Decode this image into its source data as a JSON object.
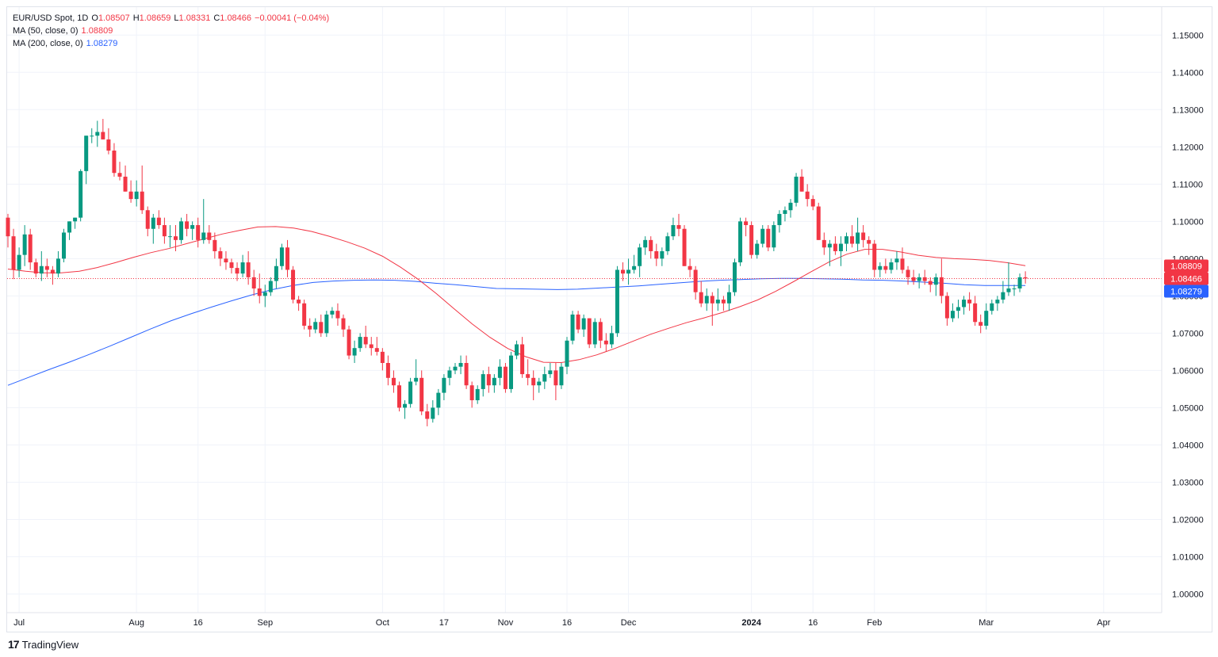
{
  "legend": {
    "symbol": "EUR/USD Spot, 1D",
    "open_label": "O",
    "open": "1.08507",
    "high_label": "H",
    "high": "1.08659",
    "low_label": "L",
    "low": "1.08331",
    "close_label": "C",
    "close": "1.08466",
    "change": "−0.00041 (−0.04%)",
    "ma50_label": "MA (50, close, 0)",
    "ma50_value": "1.08809",
    "ma200_label": "MA (200, close, 0)",
    "ma200_value": "1.08279"
  },
  "brand": {
    "name": "TradingView",
    "logo": "17"
  },
  "colors": {
    "up": "#089981",
    "down": "#f23645",
    "ma50": "#f23645",
    "ma200": "#2962ff",
    "grid": "#f0f3fa",
    "text": "#131722"
  },
  "chart_data": {
    "type": "candlestick",
    "title": "EUR/USD Spot, 1D",
    "ylim": [
      0.995,
      1.1575
    ],
    "y_ticks": [
      "1.15000",
      "1.14000",
      "1.13000",
      "1.12000",
      "1.11000",
      "1.10000",
      "1.09000",
      "1.08000",
      "1.07000",
      "1.06000",
      "1.05000",
      "1.04000",
      "1.03000",
      "1.02000",
      "1.01000",
      "1.00000"
    ],
    "x_ticks": [
      {
        "label": "Jul",
        "day": 2
      },
      {
        "label": "Aug",
        "day": 23
      },
      {
        "label": "16",
        "day": 34
      },
      {
        "label": "Sep",
        "day": 46
      },
      {
        "label": "Oct",
        "day": 67
      },
      {
        "label": "17",
        "day": 78
      },
      {
        "label": "Nov",
        "day": 89
      },
      {
        "label": "16",
        "day": 100
      },
      {
        "label": "Dec",
        "day": 111
      },
      {
        "label": "2024",
        "day": 133
      },
      {
        "label": "16",
        "day": 144
      },
      {
        "label": "Feb",
        "day": 155
      },
      {
        "label": "Mar",
        "day": 175
      },
      {
        "label": "Apr",
        "day": 196
      }
    ],
    "price_labels": [
      {
        "name": "MA 50",
        "value": "1.08809",
        "bg": "#f23645"
      },
      {
        "name": "Last",
        "value": "1.08466",
        "bg": "#f23645"
      },
      {
        "name": "MA 200",
        "value": "1.08279",
        "bg": "#2962ff"
      }
    ],
    "last_price": 1.08466,
    "candles": [
      [
        1.101,
        1.102,
        1.093,
        1.096
      ],
      [
        1.096,
        1.098,
        1.0845,
        1.087
      ],
      [
        1.087,
        1.093,
        1.085,
        1.091
      ],
      [
        1.091,
        1.099,
        1.088,
        1.0965
      ],
      [
        1.0965,
        1.098,
        1.087,
        1.089
      ],
      [
        1.089,
        1.09,
        1.085,
        1.086
      ],
      [
        1.086,
        1.092,
        1.084,
        1.088
      ],
      [
        1.088,
        1.09,
        1.085,
        1.087
      ],
      [
        1.087,
        1.088,
        1.083,
        1.086
      ],
      [
        1.086,
        1.092,
        1.085,
        1.09
      ],
      [
        1.09,
        1.098,
        1.089,
        1.097
      ],
      [
        1.097,
        1.1,
        1.095,
        1.1
      ],
      [
        1.1,
        1.101,
        1.098,
        1.101
      ],
      [
        1.101,
        1.114,
        1.1,
        1.1135
      ],
      [
        1.1135,
        1.123,
        1.11,
        1.123
      ],
      [
        1.123,
        1.125,
        1.121,
        1.123
      ],
      [
        1.123,
        1.127,
        1.12,
        1.124
      ],
      [
        1.124,
        1.1275,
        1.122,
        1.122
      ],
      [
        1.122,
        1.125,
        1.118,
        1.119
      ],
      [
        1.119,
        1.121,
        1.112,
        1.113
      ],
      [
        1.113,
        1.116,
        1.111,
        1.112
      ],
      [
        1.112,
        1.115,
        1.108,
        1.108
      ],
      [
        1.108,
        1.111,
        1.105,
        1.106
      ],
      [
        1.106,
        1.111,
        1.104,
        1.108
      ],
      [
        1.108,
        1.115,
        1.102,
        1.103
      ],
      [
        1.103,
        1.104,
        1.096,
        1.098
      ],
      [
        1.098,
        1.102,
        1.094,
        1.101
      ],
      [
        1.101,
        1.103,
        1.098,
        1.099
      ],
      [
        1.099,
        1.101,
        1.094,
        1.096
      ],
      [
        1.096,
        1.099,
        1.093,
        1.096
      ],
      [
        1.096,
        1.099,
        1.092,
        1.095
      ],
      [
        1.095,
        1.101,
        1.094,
        1.1
      ],
      [
        1.1,
        1.102,
        1.096,
        1.098
      ],
      [
        1.098,
        1.1,
        1.095,
        1.099
      ],
      [
        1.099,
        1.101,
        1.093,
        1.095
      ],
      [
        1.095,
        1.106,
        1.094,
        1.097
      ],
      [
        1.097,
        1.099,
        1.094,
        1.095
      ],
      [
        1.095,
        1.097,
        1.09,
        1.092
      ],
      [
        1.092,
        1.093,
        1.088,
        1.09
      ],
      [
        1.09,
        1.092,
        1.087,
        1.089
      ],
      [
        1.089,
        1.09,
        1.086,
        1.0875
      ],
      [
        1.0875,
        1.089,
        1.084,
        1.086
      ],
      [
        1.086,
        1.091,
        1.085,
        1.089
      ],
      [
        1.089,
        1.092,
        1.083,
        1.085
      ],
      [
        1.085,
        1.087,
        1.08,
        1.082
      ],
      [
        1.082,
        1.086,
        1.078,
        1.08
      ],
      [
        1.08,
        1.083,
        1.077,
        1.081
      ],
      [
        1.081,
        1.085,
        1.08,
        1.084
      ],
      [
        1.084,
        1.09,
        1.082,
        1.088
      ],
      [
        1.088,
        1.094,
        1.087,
        1.093
      ],
      [
        1.093,
        1.095,
        1.085,
        1.087
      ],
      [
        1.087,
        1.088,
        1.078,
        1.079
      ],
      [
        1.079,
        1.08,
        1.076,
        1.078
      ],
      [
        1.078,
        1.079,
        1.071,
        1.072
      ],
      [
        1.072,
        1.074,
        1.069,
        1.071
      ],
      [
        1.071,
        1.074,
        1.07,
        1.073
      ],
      [
        1.073,
        1.075,
        1.069,
        1.07
      ],
      [
        1.07,
        1.076,
        1.069,
        1.075
      ],
      [
        1.075,
        1.077,
        1.074,
        1.076
      ],
      [
        1.076,
        1.078,
        1.072,
        1.074
      ],
      [
        1.074,
        1.075,
        1.069,
        1.071
      ],
      [
        1.071,
        1.072,
        1.063,
        1.064
      ],
      [
        1.064,
        1.068,
        1.062,
        1.066
      ],
      [
        1.066,
        1.07,
        1.065,
        1.069
      ],
      [
        1.069,
        1.072,
        1.066,
        1.067
      ],
      [
        1.067,
        1.069,
        1.064,
        1.066
      ],
      [
        1.066,
        1.069,
        1.064,
        1.065
      ],
      [
        1.065,
        1.066,
        1.06,
        1.062
      ],
      [
        1.062,
        1.064,
        1.056,
        1.058
      ],
      [
        1.058,
        1.06,
        1.054,
        1.056
      ],
      [
        1.056,
        1.057,
        1.049,
        1.05
      ],
      [
        1.05,
        1.052,
        1.047,
        1.051
      ],
      [
        1.051,
        1.058,
        1.05,
        1.057
      ],
      [
        1.057,
        1.063,
        1.056,
        1.058
      ],
      [
        1.058,
        1.06,
        1.048,
        1.049
      ],
      [
        1.049,
        1.051,
        1.045,
        1.047
      ],
      [
        1.047,
        1.052,
        1.046,
        1.05
      ],
      [
        1.05,
        1.055,
        1.048,
        1.054
      ],
      [
        1.054,
        1.059,
        1.052,
        1.058
      ],
      [
        1.058,
        1.061,
        1.056,
        1.06
      ],
      [
        1.06,
        1.062,
        1.059,
        1.061
      ],
      [
        1.061,
        1.064,
        1.059,
        1.062
      ],
      [
        1.062,
        1.064,
        1.055,
        1.056
      ],
      [
        1.056,
        1.057,
        1.05,
        1.052
      ],
      [
        1.052,
        1.056,
        1.051,
        1.055
      ],
      [
        1.055,
        1.06,
        1.053,
        1.059
      ],
      [
        1.059,
        1.061,
        1.054,
        1.056
      ],
      [
        1.056,
        1.059,
        1.054,
        1.058
      ],
      [
        1.058,
        1.063,
        1.056,
        1.061
      ],
      [
        1.061,
        1.062,
        1.054,
        1.055
      ],
      [
        1.055,
        1.065,
        1.054,
        1.064
      ],
      [
        1.064,
        1.068,
        1.063,
        1.067
      ],
      [
        1.067,
        1.069,
        1.058,
        1.059
      ],
      [
        1.059,
        1.063,
        1.056,
        1.058
      ],
      [
        1.058,
        1.06,
        1.052,
        1.056
      ],
      [
        1.056,
        1.058,
        1.054,
        1.057
      ],
      [
        1.057,
        1.061,
        1.055,
        1.059
      ],
      [
        1.059,
        1.062,
        1.058,
        1.06
      ],
      [
        1.06,
        1.062,
        1.052,
        1.056
      ],
      [
        1.056,
        1.062,
        1.055,
        1.061
      ],
      [
        1.061,
        1.069,
        1.059,
        1.068
      ],
      [
        1.068,
        1.076,
        1.067,
        1.075
      ],
      [
        1.075,
        1.076,
        1.07,
        1.071
      ],
      [
        1.071,
        1.075,
        1.069,
        1.074
      ],
      [
        1.074,
        1.074,
        1.066,
        1.067
      ],
      [
        1.067,
        1.074,
        1.066,
        1.073
      ],
      [
        1.073,
        1.074,
        1.066,
        1.068
      ],
      [
        1.068,
        1.07,
        1.065,
        1.067
      ],
      [
        1.067,
        1.072,
        1.066,
        1.07
      ],
      [
        1.07,
        1.088,
        1.069,
        1.087
      ],
      [
        1.087,
        1.089,
        1.084,
        1.086
      ],
      [
        1.086,
        1.09,
        1.083,
        1.087
      ],
      [
        1.087,
        1.091,
        1.086,
        1.088
      ],
      [
        1.088,
        1.094,
        1.085,
        1.093
      ],
      [
        1.093,
        1.096,
        1.091,
        1.095
      ],
      [
        1.095,
        1.096,
        1.09,
        1.092
      ],
      [
        1.092,
        1.094,
        1.088,
        1.09
      ],
      [
        1.09,
        1.093,
        1.088,
        1.092
      ],
      [
        1.092,
        1.097,
        1.091,
        1.096
      ],
      [
        1.096,
        1.101,
        1.095,
        1.099
      ],
      [
        1.099,
        1.102,
        1.096,
        1.098
      ],
      [
        1.098,
        1.099,
        1.088,
        1.088
      ],
      [
        1.088,
        1.09,
        1.085,
        1.087
      ],
      [
        1.087,
        1.088,
        1.079,
        1.081
      ],
      [
        1.081,
        1.084,
        1.077,
        1.078
      ],
      [
        1.078,
        1.082,
        1.076,
        1.08
      ],
      [
        1.08,
        1.081,
        1.072,
        1.078
      ],
      [
        1.078,
        1.082,
        1.076,
        1.079
      ],
      [
        1.079,
        1.08,
        1.076,
        1.078
      ],
      [
        1.078,
        1.083,
        1.076,
        1.081
      ],
      [
        1.081,
        1.09,
        1.08,
        1.089
      ],
      [
        1.089,
        1.101,
        1.088,
        1.1
      ],
      [
        1.1,
        1.101,
        1.096,
        1.099
      ],
      [
        1.099,
        1.1,
        1.09,
        1.091
      ],
      [
        1.091,
        1.095,
        1.09,
        1.094
      ],
      [
        1.094,
        1.099,
        1.093,
        1.098
      ],
      [
        1.098,
        1.099,
        1.092,
        1.093
      ],
      [
        1.093,
        1.1,
        1.092,
        1.099
      ],
      [
        1.099,
        1.103,
        1.097,
        1.102
      ],
      [
        1.102,
        1.104,
        1.1,
        1.103
      ],
      [
        1.103,
        1.106,
        1.101,
        1.105
      ],
      [
        1.105,
        1.113,
        1.104,
        1.112
      ],
      [
        1.112,
        1.114,
        1.108,
        1.108
      ],
      [
        1.108,
        1.11,
        1.104,
        1.106
      ],
      [
        1.106,
        1.107,
        1.103,
        1.104
      ],
      [
        1.104,
        1.105,
        1.095,
        1.095
      ],
      [
        1.095,
        1.097,
        1.091,
        1.093
      ],
      [
        1.093,
        1.095,
        1.088,
        1.094
      ],
      [
        1.094,
        1.096,
        1.091,
        1.092
      ],
      [
        1.092,
        1.096,
        1.088,
        1.094
      ],
      [
        1.094,
        1.097,
        1.092,
        1.096
      ],
      [
        1.096,
        1.099,
        1.093,
        1.094
      ],
      [
        1.094,
        1.101,
        1.092,
        1.097
      ],
      [
        1.097,
        1.099,
        1.093,
        1.095
      ],
      [
        1.095,
        1.096,
        1.091,
        1.094
      ],
      [
        1.094,
        1.095,
        1.085,
        1.087
      ],
      [
        1.087,
        1.089,
        1.085,
        1.088
      ],
      [
        1.088,
        1.09,
        1.086,
        1.087
      ],
      [
        1.087,
        1.09,
        1.086,
        1.089
      ],
      [
        1.089,
        1.092,
        1.087,
        1.09
      ],
      [
        1.09,
        1.093,
        1.086,
        1.087
      ],
      [
        1.087,
        1.088,
        1.083,
        1.085
      ],
      [
        1.085,
        1.087,
        1.083,
        1.084
      ],
      [
        1.084,
        1.086,
        1.082,
        1.085
      ],
      [
        1.085,
        1.087,
        1.083,
        1.084
      ],
      [
        1.084,
        1.085,
        1.081,
        1.083
      ],
      [
        1.083,
        1.086,
        1.08,
        1.085
      ],
      [
        1.085,
        1.09,
        1.078,
        1.08
      ],
      [
        1.08,
        1.081,
        1.072,
        1.074
      ],
      [
        1.074,
        1.078,
        1.073,
        1.076
      ],
      [
        1.076,
        1.079,
        1.074,
        1.077
      ],
      [
        1.077,
        1.08,
        1.075,
        1.079
      ],
      [
        1.079,
        1.081,
        1.076,
        1.078
      ],
      [
        1.078,
        1.08,
        1.072,
        1.073
      ],
      [
        1.073,
        1.075,
        1.07,
        1.072
      ],
      [
        1.072,
        1.078,
        1.071,
        1.076
      ],
      [
        1.076,
        1.079,
        1.075,
        1.078
      ],
      [
        1.078,
        1.08,
        1.076,
        1.079
      ],
      [
        1.079,
        1.084,
        1.078,
        1.081
      ],
      [
        1.081,
        1.089,
        1.08,
        1.082
      ],
      [
        1.082,
        1.083,
        1.08,
        1.082
      ],
      [
        1.082,
        1.086,
        1.081,
        1.085
      ],
      [
        1.085,
        1.0866,
        1.0833,
        1.0847
      ]
    ],
    "ma50": [
      1.0872,
      1.0866,
      1.0862,
      1.0862,
      1.0866,
      1.0876,
      1.0889,
      1.0903,
      1.0916,
      1.0927,
      1.094,
      1.0953,
      1.0966,
      1.0976,
      1.0985,
      1.0986,
      1.0982,
      1.0973,
      1.096,
      1.0945,
      1.0928,
      1.0906,
      1.0877,
      1.0844,
      1.0806,
      1.0765,
      1.0725,
      1.0689,
      1.0659,
      1.0637,
      1.0622,
      1.0621,
      1.0629,
      1.0642,
      1.0659,
      1.0678,
      1.0697,
      1.0713,
      1.0728,
      1.0741,
      1.0755,
      1.0771,
      1.0789,
      1.0812,
      1.0838,
      1.0865,
      1.0891,
      1.0912,
      1.0925,
      1.0925,
      1.0918,
      1.0909,
      1.0903,
      1.09,
      1.0898,
      1.0895,
      1.0889,
      1.0881
    ],
    "ma200": [
      1.056,
      1.0581,
      1.0602,
      1.0622,
      1.0643,
      1.0665,
      1.0688,
      1.0711,
      1.0733,
      1.0752,
      1.077,
      1.0787,
      1.0803,
      1.0817,
      1.0828,
      1.0836,
      1.084,
      1.0842,
      1.0843,
      1.0842,
      1.0839,
      1.0834,
      1.083,
      1.0825,
      1.082,
      1.0819,
      1.0818,
      1.0817,
      1.0818,
      1.0821,
      1.0824,
      1.0827,
      1.0831,
      1.0835,
      1.0839,
      1.0842,
      1.0844,
      1.0846,
      1.0847,
      1.0847,
      1.0846,
      1.0845,
      1.0843,
      1.0842,
      1.084,
      1.0837,
      1.0834,
      1.083,
      1.0828,
      1.0828,
      1.0828
    ]
  }
}
